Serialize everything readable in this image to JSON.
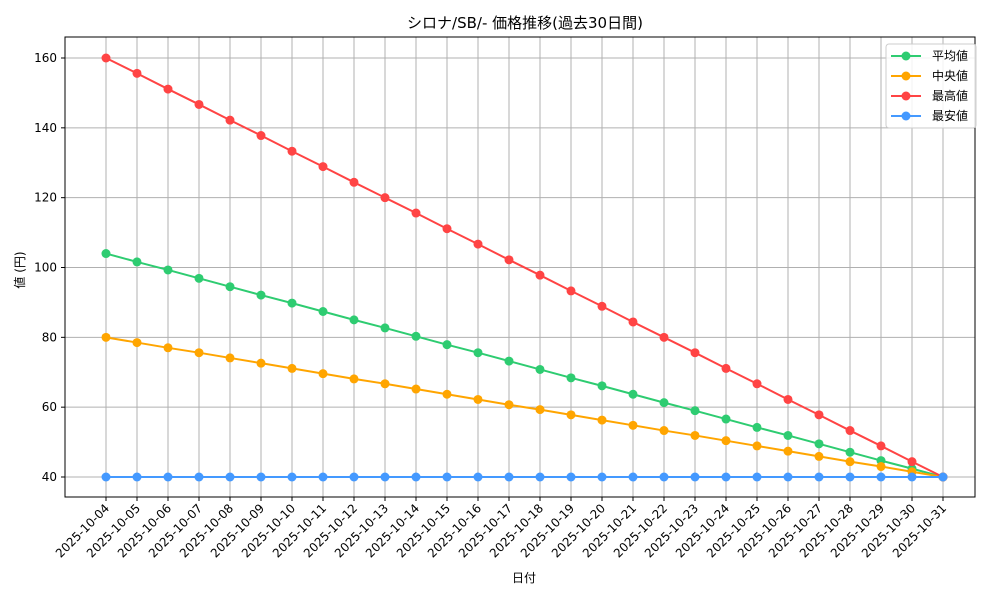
{
  "chart_data": {
    "type": "line",
    "title": "シロナ/SB/- 価格推移(過去30日間)",
    "xlabel": "日付",
    "ylabel": "値 (円)",
    "ylim": [
      34,
      166
    ],
    "yticks": [
      40,
      60,
      80,
      100,
      120,
      140,
      160
    ],
    "grid": true,
    "legend_position": "upper right",
    "x": [
      "2025-10-04",
      "2025-10-05",
      "2025-10-06",
      "2025-10-07",
      "2025-10-08",
      "2025-10-09",
      "2025-10-10",
      "2025-10-11",
      "2025-10-12",
      "2025-10-13",
      "2025-10-14",
      "2025-10-15",
      "2025-10-16",
      "2025-10-17",
      "2025-10-18",
      "2025-10-19",
      "2025-10-20",
      "2025-10-21",
      "2025-10-22",
      "2025-10-23",
      "2025-10-24",
      "2025-10-25",
      "2025-10-26",
      "2025-10-27",
      "2025-10-28",
      "2025-10-29",
      "2025-10-30",
      "2025-10-31"
    ],
    "series": [
      {
        "name": "平均値",
        "color": "#2ecc71",
        "values": [
          104.0,
          101.6,
          99.3,
          96.9,
          94.5,
          92.1,
          89.8,
          87.4,
          85.0,
          82.7,
          80.3,
          77.9,
          75.6,
          73.2,
          70.8,
          68.4,
          66.1,
          63.7,
          61.3,
          59.0,
          56.6,
          54.2,
          51.9,
          49.5,
          47.1,
          44.7,
          42.4,
          40.0
        ]
      },
      {
        "name": "中央値",
        "color": "#ffa500",
        "values": [
          80.0,
          78.5,
          77.0,
          75.6,
          74.1,
          72.6,
          71.1,
          69.6,
          68.1,
          66.7,
          65.2,
          63.7,
          62.2,
          60.7,
          59.3,
          57.8,
          56.3,
          54.8,
          53.3,
          51.9,
          50.4,
          48.9,
          47.4,
          45.9,
          44.4,
          43.0,
          41.5,
          40.0
        ]
      },
      {
        "name": "最高値",
        "color": "#ff4444",
        "values": [
          160.0,
          155.6,
          151.1,
          146.7,
          142.2,
          137.8,
          133.3,
          128.9,
          124.4,
          120.0,
          115.6,
          111.1,
          106.7,
          102.2,
          97.8,
          93.3,
          88.9,
          84.4,
          80.0,
          75.6,
          71.1,
          66.7,
          62.2,
          57.8,
          53.3,
          48.9,
          44.4,
          40.0
        ]
      },
      {
        "name": "最安値",
        "color": "#4499ff",
        "values": [
          40,
          40,
          40,
          40,
          40,
          40,
          40,
          40,
          40,
          40,
          40,
          40,
          40,
          40,
          40,
          40,
          40,
          40,
          40,
          40,
          40,
          40,
          40,
          40,
          40,
          40,
          40,
          40
        ]
      }
    ]
  }
}
